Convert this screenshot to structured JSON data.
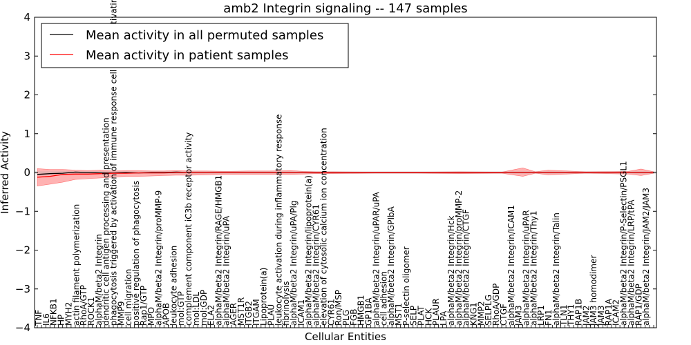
{
  "chart_data": {
    "type": "line",
    "title": "amb2 Integrin signaling -- 147 samples",
    "xlabel": "Cellular Entities",
    "ylabel": "Inferred Activity",
    "ylim": [
      -4,
      4
    ],
    "yticks": [
      "4",
      "3",
      "2",
      "1",
      "0",
      "−1",
      "−2",
      "−3",
      "−4"
    ],
    "ytick_values": [
      4,
      3,
      2,
      1,
      0,
      -1,
      -2,
      -3,
      -4
    ],
    "x_count": 147,
    "legend_position": "top-left",
    "legend": [
      {
        "label": "Mean activity in all permuted samples",
        "color": "#000000"
      },
      {
        "label": "Mean activity in patient samples",
        "color": "#ff0000"
      }
    ],
    "labels": [
      "TNF",
      "IL6",
      "NFKB1",
      "HP",
      "MYH2",
      "actin filament polymerization",
      "RhoA/GTP",
      "ROCK1",
      "alphaM/beta2 Integrin",
      "dendritic cell antigen processing and presentation",
      "phagocytosis triggered by activation of immune response cell surface activating receptor",
      "MMP9",
      "cell migration",
      "positive regulation of phagocytosis",
      "Rap1/GTP",
      "MPO",
      "alphaM/beta2 Integrin/proMMP-9",
      "APOB",
      "leukocyte adhesion",
      "mol:GTP",
      "complement component iC3b receptor activity",
      "mol:LDL",
      "mol:GDP",
      "ELA2",
      "alphaM/beta2 Integrin/RAGE/HMGB1",
      "alphaM/beta2 Integrin/uPA",
      "AGER",
      "MST1R",
      "ITGB2",
      "ITGAM",
      "Lipoprotein(a)",
      "PLAU",
      "leukocyte activation during inflammatory response",
      "fibrinolysis",
      "alphaM/beta2 Integrin/uPA/Plg",
      "ICAM1",
      "alphaM/beta2 Integrin/lipoprotein(a)",
      "alphaM/beta2 Integrin/CYR61",
      "elevation of cytosolic calcium ion concentration",
      "CYR61",
      "Ron/MSP",
      "PLG",
      "FGB",
      "HMGB1",
      "GP1BA",
      "alphaM/beta2 Integrin/uPAR/uPA",
      "cell adhesion",
      "alphaM/beta2 Integrin/GPIbA",
      "MST1",
      "P-selectin oligomer",
      "SELP",
      "PLAT",
      "HCK",
      "PLAUR",
      "LPA",
      "alphaM/beta2 Integrin/Hck",
      "alphaM/beta2 Integrin/proMMP-2",
      "alphaM/beta2 Integrin/CTGF",
      "KNG1",
      "MMP2",
      "SELPLG",
      "RhoA/GDP",
      "CTGF",
      "alphaM/beta2 Integrin/ICAM1",
      "JAM3",
      "alphaM/beta2 Integrin/uPAR",
      "alphaM/beta2 Integrin/Thy1",
      "LRP1",
      "FN1",
      "alphaM/beta2 Integrin/Talin",
      "TLN1",
      "THY1",
      "RAP1B",
      "JAM2",
      "JAM3 homodimer",
      "JAM3",
      "RAP1A",
      "ICAM2",
      "alphaM/beta2 Integrin/P-Selectin/PSGL1",
      "alphaM/beta2 Integrin/LRP/tPA",
      "RAP1/GDP",
      "alphaM/beta2 Integrin/JAM2/JAM3"
    ],
    "series": [
      {
        "name": "Mean activity in all permuted samples",
        "color": "#000000",
        "x": [
          0,
          3,
          6,
          9,
          12,
          15,
          18,
          21,
          24,
          27,
          30,
          33,
          36,
          40,
          45,
          50,
          55,
          60,
          70,
          80,
          90,
          100,
          110,
          120,
          130,
          140,
          146
        ],
        "values": [
          -0.05,
          -0.03,
          -0.02,
          0.01,
          0.0,
          -0.01,
          -0.01,
          0.0,
          -0.01,
          0.0,
          0.0,
          0.01,
          0.0,
          0.0,
          0.0,
          0.0,
          0.0,
          0.0,
          0.0,
          0.0,
          0.0,
          0.0,
          0.0,
          0.0,
          0.0,
          0.0,
          0.0
        ]
      },
      {
        "name": "Mean activity in patient samples",
        "color": "#ff0000",
        "x": [
          0,
          3,
          6,
          9,
          12,
          15,
          18,
          21,
          24,
          27,
          30,
          33,
          36,
          40,
          45,
          50,
          55,
          60,
          70,
          80,
          90,
          100,
          110,
          120,
          130,
          140,
          146
        ],
        "values": [
          -0.12,
          -0.1,
          -0.05,
          -0.04,
          -0.04,
          -0.03,
          -0.02,
          -0.02,
          -0.01,
          -0.01,
          -0.01,
          0.0,
          0.0,
          0.0,
          0.0,
          0.0,
          0.0,
          0.0,
          0.0,
          0.0,
          0.0,
          0.0,
          0.0,
          0.0,
          0.0,
          0.0,
          0.0
        ]
      }
    ],
    "band": {
      "name": "Patient sample spread",
      "color": "#ff0000",
      "x": [
        0,
        3,
        6,
        9,
        12,
        15,
        18,
        21,
        24,
        27,
        30,
        33,
        36,
        40,
        45,
        50,
        55,
        60,
        63,
        66,
        70,
        80,
        90,
        100,
        110,
        115,
        118,
        121,
        130,
        140,
        143,
        146
      ],
      "upper": [
        0.1,
        0.08,
        0.08,
        0.06,
        0.05,
        0.06,
        0.04,
        0.05,
        0.05,
        0.04,
        0.04,
        0.05,
        0.04,
        0.04,
        0.03,
        0.04,
        0.04,
        0.05,
        0.03,
        0.02,
        0.02,
        0.01,
        0.01,
        0.02,
        0.01,
        0.12,
        0.02,
        0.06,
        0.02,
        0.03,
        0.09,
        0.02
      ],
      "lower": [
        -0.35,
        -0.3,
        -0.25,
        -0.18,
        -0.16,
        -0.14,
        -0.12,
        -0.1,
        -0.1,
        -0.09,
        -0.08,
        -0.07,
        -0.07,
        -0.06,
        -0.05,
        -0.05,
        -0.05,
        -0.05,
        -0.04,
        -0.03,
        -0.03,
        -0.02,
        -0.02,
        -0.03,
        -0.02,
        -0.1,
        -0.02,
        -0.06,
        -0.02,
        -0.04,
        -0.08,
        -0.02
      ]
    }
  }
}
